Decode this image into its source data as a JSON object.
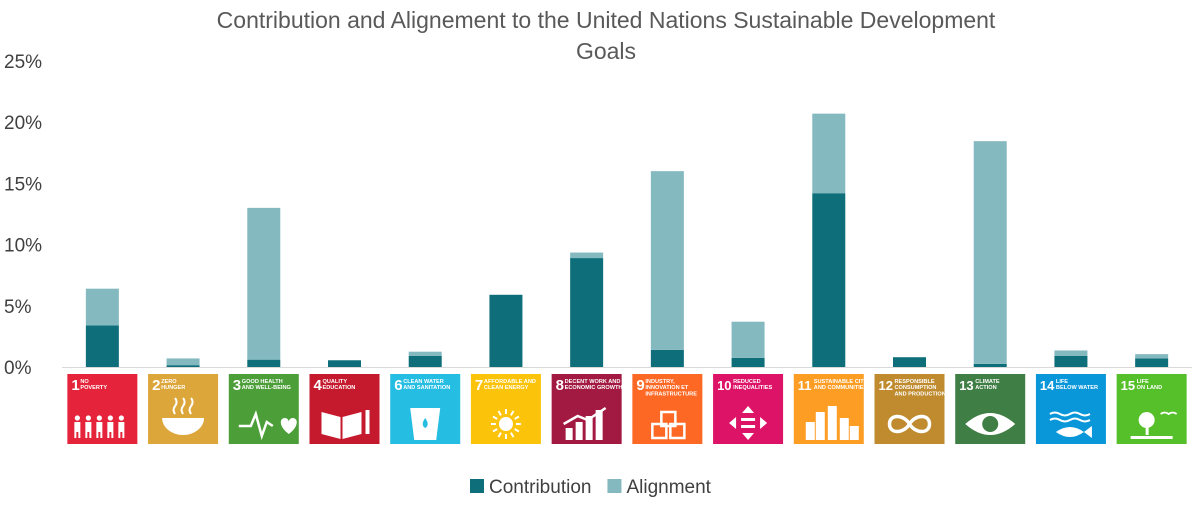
{
  "chart_data": {
    "type": "bar",
    "stacked": true,
    "title": "Contribution and Alignement to the United Nations Sustainable Development Goals",
    "title_lines": [
      "Contribution and Alignement to the United Nations Sustainable Development",
      "Goals"
    ],
    "xlabel": "",
    "ylabel": "",
    "ylim": [
      0,
      25
    ],
    "yticks": [
      "0%",
      "5%",
      "10%",
      "15%",
      "20%",
      "25%"
    ],
    "ytick_values": [
      0,
      5,
      10,
      15,
      20,
      25
    ],
    "grid": false,
    "legend_position": "bottom",
    "categories": [
      {
        "num": "1",
        "label": [
          "NO",
          "POVERTY"
        ],
        "color": "#E5243B"
      },
      {
        "num": "2",
        "label": [
          "ZERO",
          "HUNGER"
        ],
        "color": "#DDA63A"
      },
      {
        "num": "3",
        "label": [
          "GOOD HEALTH",
          "AND WELL-BEING"
        ],
        "color": "#4C9F38"
      },
      {
        "num": "4",
        "label": [
          "QUALITY",
          "EDUCATION"
        ],
        "color": "#C5192D"
      },
      {
        "num": "6",
        "label": [
          "CLEAN WATER",
          "AND SANITATION"
        ],
        "color": "#26BDE2"
      },
      {
        "num": "7",
        "label": [
          "AFFORDABLE AND",
          "CLEAN ENERGY"
        ],
        "color": "#FCC30B"
      },
      {
        "num": "8",
        "label": [
          "DECENT WORK AND",
          "ECONOMIC GROWTH"
        ],
        "color": "#A21942"
      },
      {
        "num": "9",
        "label": [
          "INDUSTRY,",
          "INNOVATION ET",
          "INFRASTRUCTURE"
        ],
        "color": "#FD6925"
      },
      {
        "num": "10",
        "label": [
          "REDUCED",
          "INEQUALITIES"
        ],
        "color": "#DD1367"
      },
      {
        "num": "11",
        "label": [
          "SUSTAINABLE CITIES",
          "AND COMMUNITIES"
        ],
        "color": "#FD9D24"
      },
      {
        "num": "12",
        "label": [
          "RESPONSIBLE",
          "CONSUMPTION",
          "AND PRODUCTION"
        ],
        "color": "#BF8B2E"
      },
      {
        "num": "13",
        "label": [
          "CLIMATE",
          "ACTION"
        ],
        "color": "#3F7E44"
      },
      {
        "num": "14",
        "label": [
          "LIFE",
          "BELOW WATER"
        ],
        "color": "#0A97D9"
      },
      {
        "num": "15",
        "label": [
          "LIFE",
          "ON LAND"
        ],
        "color": "#56C02B"
      }
    ],
    "series": [
      {
        "name": "Contribution",
        "color": "#0E6F7B",
        "values": [
          3.4,
          0.15,
          0.6,
          0.55,
          0.9,
          5.9,
          8.9,
          1.4,
          0.75,
          14.2,
          0.8,
          0.25,
          0.9,
          0.7
        ]
      },
      {
        "name": "Alignment",
        "color": "#84B9C0",
        "values": [
          3.0,
          0.55,
          12.4,
          0.0,
          0.35,
          0.0,
          0.45,
          14.6,
          2.95,
          6.5,
          0.0,
          18.2,
          0.45,
          0.35
        ]
      }
    ]
  }
}
